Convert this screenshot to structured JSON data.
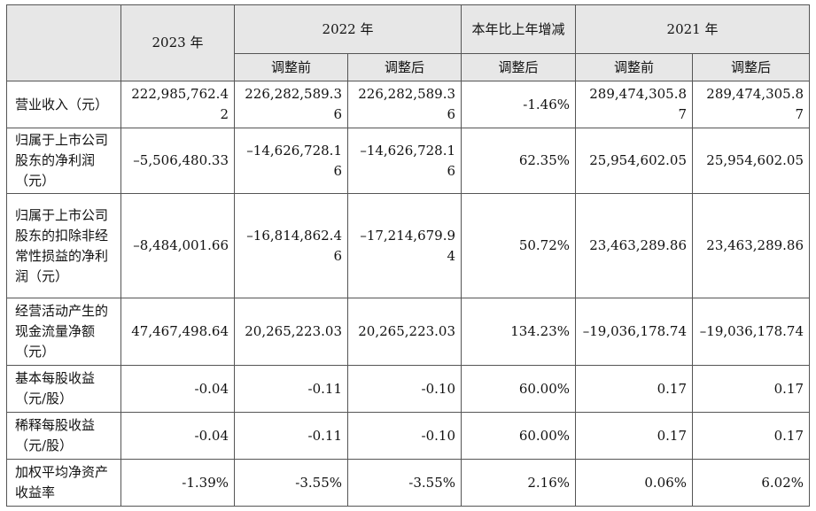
{
  "header": {
    "y2023": "2023 年",
    "y2022": "2022 年",
    "change": "本年比上年增减",
    "y2021": "2021 年",
    "before": "调整前",
    "after": "调整后",
    "change_sub": "调整后",
    "before_2021": "调整前",
    "after_2021": "调整后"
  },
  "rows": [
    {
      "label": "营业收入（元）",
      "c2023": "222,985,762.42",
      "c2022b": "226,282,589.36",
      "c2022a": "226,282,589.36",
      "chg": "-1.46%",
      "c2021b": "289,474,305.87",
      "c2021a": "289,474,305.87"
    },
    {
      "label": "归属于上市公司股东的净利润（元）",
      "c2023": "–5,506,480.33",
      "c2022b": "–14,626,728.16",
      "c2022a": "–14,626,728.16",
      "chg": "62.35%",
      "c2021b": "25,954,602.05",
      "c2021a": "25,954,602.05"
    },
    {
      "label": "归属于上市公司股东的扣除非经常性损益的净利润（元）",
      "c2023": "–8,484,001.66",
      "c2022b": "–16,814,862.46",
      "c2022a": "–17,214,679.94",
      "chg": "50.72%",
      "c2021b": "23,463,289.86",
      "c2021a": "23,463,289.86"
    },
    {
      "label": "经营活动产生的现金流量净额（元）",
      "c2023": "47,467,498.64",
      "c2022b": "20,265,223.03",
      "c2022a": "20,265,223.03",
      "chg": "134.23%",
      "c2021b": "–19,036,178.74",
      "c2021a": "–19,036,178.74"
    },
    {
      "label": "基本每股收益（元/股）",
      "c2023": "-0.04",
      "c2022b": "-0.11",
      "c2022a": "-0.10",
      "chg": "60.00%",
      "c2021b": "0.17",
      "c2021a": "0.17"
    },
    {
      "label": "稀释每股收益（元/股）",
      "c2023": "-0.04",
      "c2022b": "-0.11",
      "c2022a": "-0.10",
      "chg": "60.00%",
      "c2021b": "0.17",
      "c2021a": "0.17"
    },
    {
      "label": "加权平均净资产收益率",
      "c2023": "-1.39%",
      "c2022b": "-3.55%",
      "c2022a": "-3.55%",
      "chg": "2.16%",
      "c2021b": "0.06%",
      "c2021a": "6.02%"
    }
  ]
}
